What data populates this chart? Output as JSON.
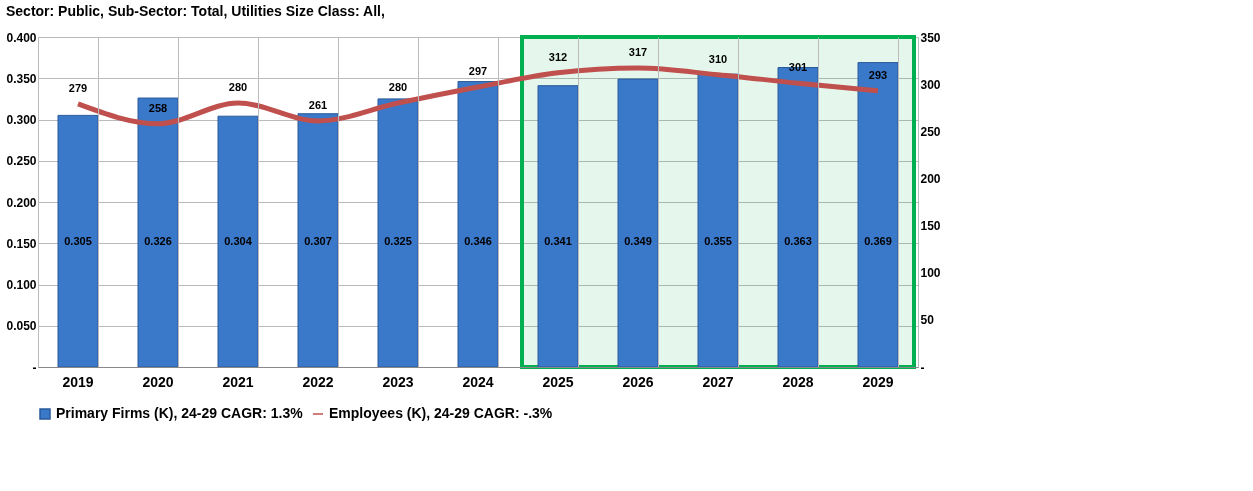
{
  "chart_data": {
    "type": "bar",
    "title": "Sector: Public, Sub-Sector: Total, Utilities Size Class: All,",
    "categories": [
      "2019",
      "2020",
      "2021",
      "2022",
      "2023",
      "2024",
      "2025",
      "2026",
      "2027",
      "2028",
      "2029"
    ],
    "series": [
      {
        "name": "Primary Firms (K), 24-29 CAGR: 1.3%",
        "color": "#3a78c9",
        "values": [
          0.305,
          0.326,
          0.304,
          0.307,
          0.325,
          0.346,
          0.341,
          0.349,
          0.355,
          0.363,
          0.369
        ]
      },
      {
        "name": "Employees (K), 24-29 CAGR: -.3%",
        "color": "#c0504d",
        "type": "line",
        "axis": "y2",
        "values": [
          279,
          258,
          280,
          261,
          280,
          297,
          312,
          317,
          310,
          301,
          293
        ]
      }
    ],
    "ylim": [
      0,
      0.4
    ],
    "yticks": [
      {
        "value": 0,
        "label": "-"
      },
      {
        "value": 0.05,
        "label": "0.050"
      },
      {
        "value": 0.1,
        "label": "0.100"
      },
      {
        "value": 0.15,
        "label": "0.150"
      },
      {
        "value": 0.2,
        "label": "0.200"
      },
      {
        "value": 0.25,
        "label": "0.250"
      },
      {
        "value": 0.3,
        "label": "0.300"
      },
      {
        "value": 0.35,
        "label": "0.350"
      },
      {
        "value": 0.4,
        "label": "0.400"
      }
    ],
    "y2lim": [
      0,
      350
    ],
    "y2ticks": [
      {
        "value": 0,
        "label": "-"
      },
      50,
      100,
      150,
      200,
      250,
      300,
      350
    ],
    "bands": [
      {
        "axis": "x",
        "from": "2025",
        "to": "2029",
        "color": "#00b050"
      }
    ],
    "data_labels": true,
    "grid": true,
    "legend": "bottom"
  }
}
